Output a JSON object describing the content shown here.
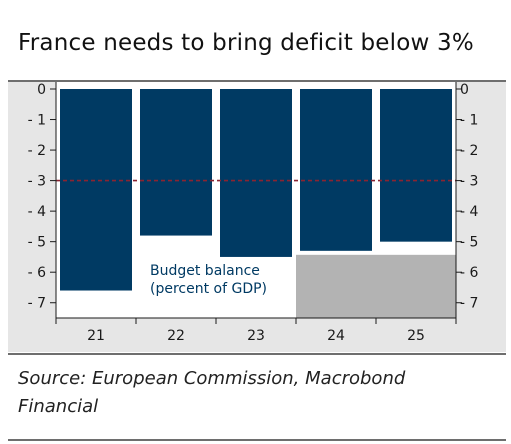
{
  "title": "France needs to bring deficit below 3%",
  "source": "Source: European Commission, Macrobond Financial",
  "colors": {
    "bar": "#003A63",
    "forecast_shade": "#B3B3B3",
    "plot_background": "#E6E6E6",
    "threshold_line": "#8A2432",
    "annotation_text": "#003A63"
  },
  "chart_data": {
    "type": "bar",
    "categories": [
      "21",
      "22",
      "23",
      "24",
      "25"
    ],
    "series": [
      {
        "values": [
          -6.6,
          -4.8,
          -5.5,
          -5.3,
          -5.0
        ]
      }
    ],
    "ylim": [
      -7.5,
      0
    ],
    "yticks": [
      0,
      -1,
      -2,
      -3,
      -4,
      -5,
      -6,
      -7
    ],
    "ytick_labels": [
      "0",
      "- 1",
      "- 2",
      "- 3",
      "- 4",
      "- 5",
      "- 6",
      "- 7"
    ],
    "y_axes": "left and right",
    "reference_line": {
      "value": -3,
      "style": "dashed"
    },
    "forecast_categories": [
      "24",
      "25"
    ],
    "annotation": [
      "Budget balance",
      "(percent of GDP)"
    ],
    "grid": false,
    "legend": "none"
  }
}
